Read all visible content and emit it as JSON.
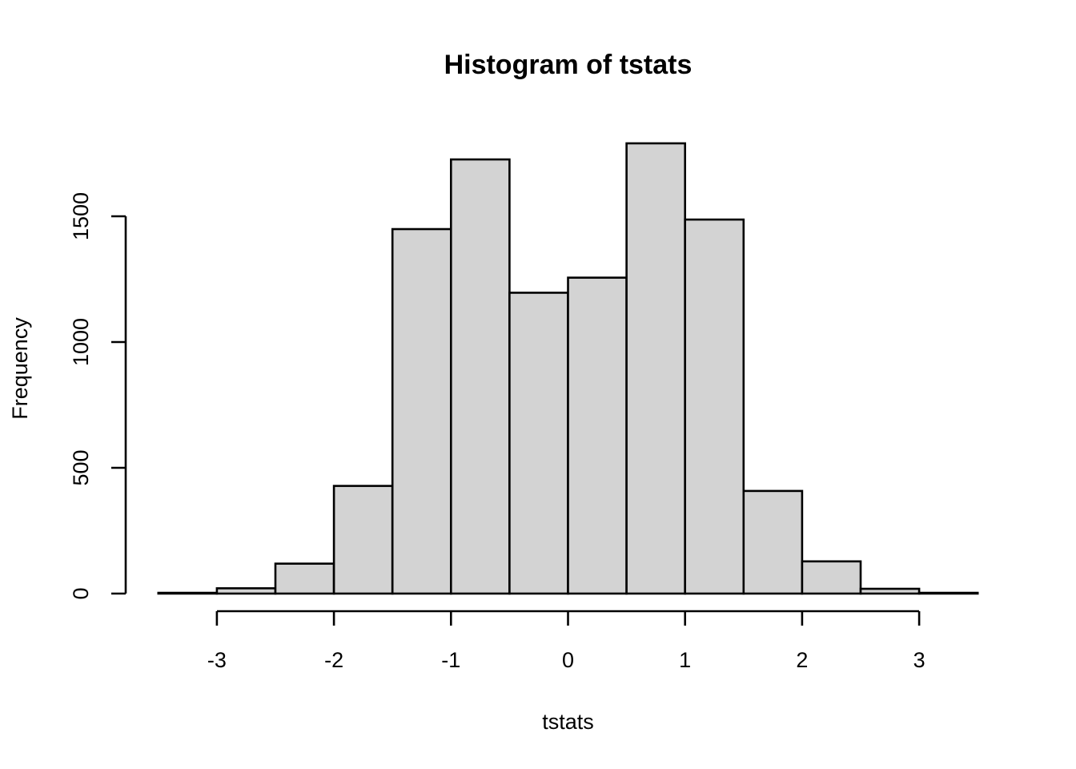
{
  "chart_data": {
    "type": "bar",
    "subtype": "histogram",
    "title": "Histogram of tstats",
    "xlabel": "tstats",
    "ylabel": "Frequency",
    "bin_edges": [
      -3.5,
      -3.0,
      -2.5,
      -2.0,
      -1.5,
      -1.0,
      -0.5,
      0.0,
      0.5,
      1.0,
      1.5,
      2.0,
      2.5,
      3.0,
      3.5
    ],
    "categories": [
      "-3.5–-3",
      "-3–-2.5",
      "-2.5–-2",
      "-2–-1.5",
      "-1.5–-1",
      "-1–-0.5",
      "-0.5–0",
      "0–0.5",
      "0.5–1",
      "1–1.5",
      "1.5–2",
      "2–2.5",
      "2.5–3",
      "3–3.5"
    ],
    "values": [
      3,
      21,
      119,
      428,
      1449,
      1726,
      1196,
      1256,
      1790,
      1487,
      408,
      128,
      19,
      3
    ],
    "x_ticks": [
      -3,
      -2,
      -1,
      0,
      1,
      2,
      3
    ],
    "x_tick_labels": [
      "-3",
      "-2",
      "-1",
      "0",
      "1",
      "2",
      "3"
    ],
    "y_ticks": [
      0,
      500,
      1000,
      1500
    ],
    "y_tick_labels": [
      "0",
      "500",
      "1000",
      "1500"
    ],
    "xlim": [
      -3.5,
      3.5
    ],
    "ylim": [
      0,
      1790
    ],
    "grid": false,
    "legend": null,
    "colors": {
      "bar_fill": "#d3d3d3",
      "bar_stroke": "#000000",
      "background": "#ffffff"
    }
  }
}
